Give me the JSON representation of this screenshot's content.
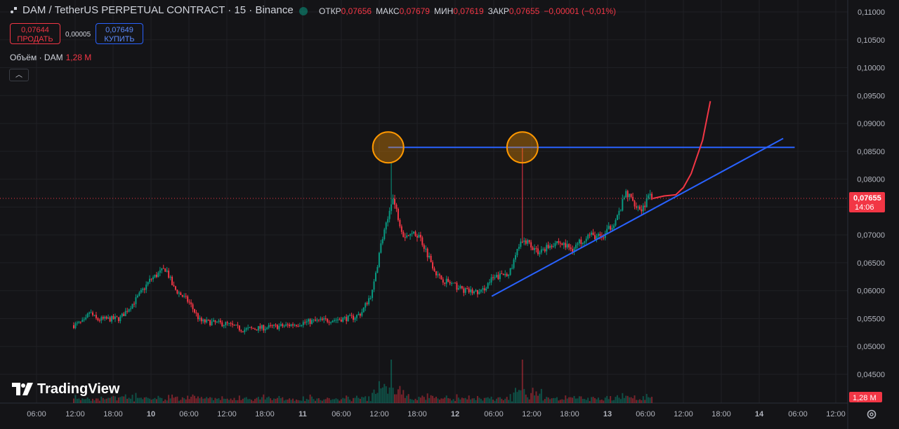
{
  "header": {
    "symbol": "DAM / TetherUS PERPETUAL CONTRACT · 15 · Binance",
    "ohlc": [
      {
        "label": "ОТКР",
        "value": "0,07656"
      },
      {
        "label": "МАКС",
        "value": "0,07679"
      },
      {
        "label": "МИН",
        "value": "0,07619"
      },
      {
        "label": "ЗАКР",
        "value": "0,07655"
      }
    ],
    "change": "−0,00001 (−0,01%)"
  },
  "trade": {
    "sell_price": "0,07644",
    "sell_label": "ПРОДАТЬ",
    "spread": "0,00005",
    "buy_price": "0,07649",
    "buy_label": "КУПИТЬ"
  },
  "volume_legend": {
    "label": "Объём · DAM",
    "value": "1,28 M"
  },
  "brand": "TradingView",
  "colors": {
    "up": "#089981",
    "down": "#f23645",
    "trendline": "#2962ff",
    "highlight": "#ff9800",
    "forecast": "#f23645"
  },
  "chart_data": {
    "type": "candlestick",
    "y_ticks": [
      "0,11000",
      "0,10500",
      "0,10000",
      "0,09500",
      "0,09000",
      "0,08500",
      "0,08000",
      "0,07500",
      "0,07000",
      "0,06500",
      "0,06000",
      "0,05500",
      "0,05000",
      "0,04500"
    ],
    "ylim": [
      0.0433,
      0.112
    ],
    "x_ticks": [
      "06:00",
      "12:00",
      "18:00",
      "10",
      "06:00",
      "12:00",
      "18:00",
      "11",
      "06:00",
      "12:00",
      "18:00",
      "12",
      "06:00",
      "12:00",
      "18:00",
      "13",
      "06:00",
      "12:00",
      "18:00",
      "14",
      "06:00",
      "12:00"
    ],
    "last_price": {
      "value": 0.07655,
      "label": "0,07655",
      "countdown": "14:06"
    },
    "volume_label": "1,28 M",
    "price_path": [
      {
        "t": 0,
        "p": 0.0538
      },
      {
        "t": 0.03,
        "p": 0.0545
      },
      {
        "t": 0.04,
        "p": 0.0562
      },
      {
        "t": 0.06,
        "p": 0.0548
      },
      {
        "t": 0.12,
        "p": 0.055
      },
      {
        "t": 0.16,
        "p": 0.0582
      },
      {
        "t": 0.2,
        "p": 0.062
      },
      {
        "t": 0.24,
        "p": 0.064
      },
      {
        "t": 0.26,
        "p": 0.0605
      },
      {
        "t": 0.3,
        "p": 0.058
      },
      {
        "t": 0.33,
        "p": 0.0545
      },
      {
        "t": 0.4,
        "p": 0.054
      },
      {
        "t": 0.44,
        "p": 0.053
      },
      {
        "t": 0.55,
        "p": 0.0537
      },
      {
        "t": 0.62,
        "p": 0.0545
      },
      {
        "t": 0.68,
        "p": 0.0548
      },
      {
        "t": 0.73,
        "p": 0.0552
      },
      {
        "t": 0.75,
        "p": 0.056
      },
      {
        "t": 0.78,
        "p": 0.06
      },
      {
        "t": 0.8,
        "p": 0.068
      },
      {
        "t": 0.82,
        "p": 0.073
      },
      {
        "t": 0.83,
        "p": 0.077
      },
      {
        "t": 0.86,
        "p": 0.07
      },
      {
        "t": 0.9,
        "p": 0.07
      },
      {
        "t": 0.92,
        "p": 0.067
      },
      {
        "t": 0.95,
        "p": 0.0625
      },
      {
        "t": 0.99,
        "p": 0.061
      },
      {
        "t": 1.02,
        "p": 0.06
      },
      {
        "t": 1.06,
        "p": 0.0596
      },
      {
        "t": 1.09,
        "p": 0.062
      },
      {
        "t": 1.14,
        "p": 0.0635
      },
      {
        "t": 1.16,
        "p": 0.068
      },
      {
        "t": 1.18,
        "p": 0.069
      },
      {
        "t": 1.21,
        "p": 0.067
      },
      {
        "t": 1.26,
        "p": 0.0688
      },
      {
        "t": 1.3,
        "p": 0.0675
      },
      {
        "t": 1.34,
        "p": 0.07
      },
      {
        "t": 1.38,
        "p": 0.0695
      },
      {
        "t": 1.42,
        "p": 0.0735
      },
      {
        "t": 1.44,
        "p": 0.0775
      },
      {
        "t": 1.46,
        "p": 0.076
      },
      {
        "t": 1.48,
        "p": 0.0745
      },
      {
        "t": 1.5,
        "p": 0.0768
      },
      {
        "t": 1.51,
        "p": 0.07655
      }
    ],
    "spikes": [
      {
        "t": 0.83,
        "high": 0.083
      },
      {
        "t": 1.17,
        "high": 0.0857
      }
    ],
    "volume_spikes": [
      {
        "t": 0.83,
        "v": 1.0
      },
      {
        "t": 1.17,
        "v": 1.0
      }
    ],
    "annotations": {
      "resistance": {
        "t1": 0.82,
        "t2": 1.88,
        "p": 0.0857
      },
      "support": {
        "t1": 1.09,
        "p1": 0.059,
        "t2": 1.85,
        "p2": 0.0873
      },
      "circles": [
        {
          "t": 0.82,
          "p": 0.0857
        },
        {
          "t": 1.17,
          "p": 0.0857
        }
      ],
      "forecast": [
        {
          "t": 1.51,
          "p": 0.07655
        },
        {
          "t": 1.54,
          "p": 0.077
        },
        {
          "t": 1.57,
          "p": 0.0772
        },
        {
          "t": 1.59,
          "p": 0.0785
        },
        {
          "t": 1.61,
          "p": 0.081
        },
        {
          "t": 1.64,
          "p": 0.087
        },
        {
          "t": 1.66,
          "p": 0.094
        }
      ]
    }
  }
}
